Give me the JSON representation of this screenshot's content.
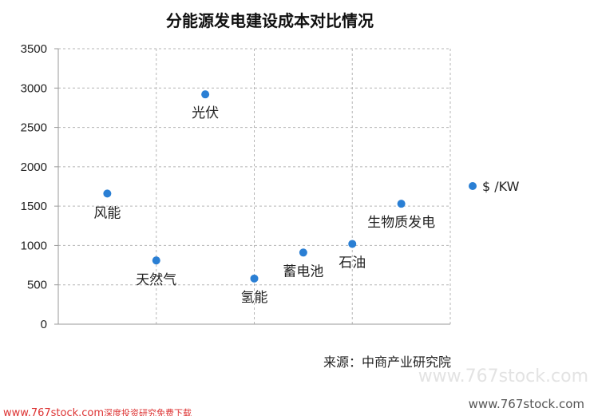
{
  "chart_data": {
    "type": "scatter",
    "title": "分能源发电建设成本对比情况",
    "xlabel": "",
    "ylabel": "",
    "ylim": [
      0,
      3500
    ],
    "yticks": [
      0,
      500,
      1000,
      1500,
      2000,
      2500,
      3000,
      3500
    ],
    "xlim": [
      0,
      8
    ],
    "grid": true,
    "legend": {
      "position": "right",
      "label": "$ /KW",
      "color": "#2a7fd4"
    },
    "points": [
      {
        "label": "风能",
        "x": 1,
        "y": 1660
      },
      {
        "label": "天然气",
        "x": 2,
        "y": 810
      },
      {
        "label": "光伏",
        "x": 3,
        "y": 2920
      },
      {
        "label": "氢能",
        "x": 4,
        "y": 580
      },
      {
        "label": "蓄电池",
        "x": 5,
        "y": 910
      },
      {
        "label": "石油",
        "x": 6,
        "y": 1020
      },
      {
        "label": "生物质发电",
        "x": 7,
        "y": 1530
      }
    ],
    "marker_color": "#2a7fd4"
  },
  "source": "来源：中商产业研究院",
  "watermarks": {
    "site_large": "www.767stock.com",
    "site_small": "www.767stock.com",
    "site_bottom_left": "www.767stock.com",
    "bottom_left_tagline": "深度投资研究免费下载"
  }
}
